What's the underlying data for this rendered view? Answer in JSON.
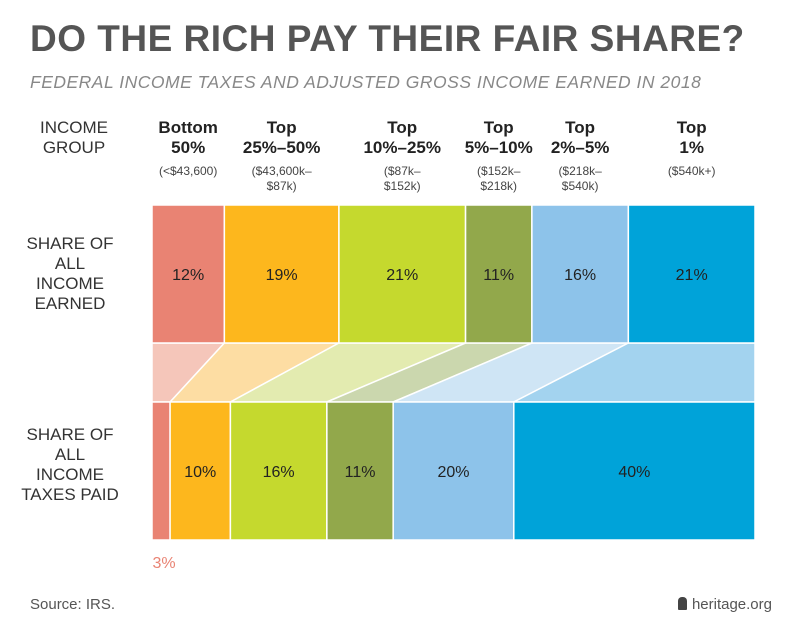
{
  "title": "DO THE RICH PAY THEIR FAIR SHARE?",
  "subtitle": "FEDERAL INCOME TAXES AND ADJUSTED GROSS INCOME EARNED IN 2018",
  "row_labels": {
    "group": "INCOME GROUP",
    "income": "SHARE OF ALL INCOME EARNED",
    "taxes": "SHARE OF ALL INCOME TAXES PAID"
  },
  "source": "Source: IRS.",
  "brand": "heritage.org",
  "brand_icon": "liberty-bell-icon",
  "chart_data": {
    "type": "bar",
    "stacked": "100% horizontal",
    "title": "DO THE RICH PAY THEIR FAIR SHARE?",
    "subtitle": "FEDERAL INCOME TAXES AND ADJUSTED GROSS INCOME EARNED IN 2018",
    "categories": [
      {
        "name": "Bottom 50%",
        "range": "(<$43,600)",
        "color": "#E98373",
        "light": "#F5C6BA"
      },
      {
        "name": "Top 25%–50%",
        "range": "($43,600k– $87k)",
        "color": "#FDB71D",
        "light": "#FDDDA3"
      },
      {
        "name": "Top 10%–25%",
        "range": "($87k– $152k)",
        "color": "#C5D92E",
        "light": "#E3EBB0"
      },
      {
        "name": "Top 5%–10%",
        "range": "($152k– $218k)",
        "color": "#92A84B",
        "light": "#CBD7AE"
      },
      {
        "name": "Top 2%–5%",
        "range": "($218k– $540k)",
        "color": "#8DC3EA",
        "light": "#CFE5F5"
      },
      {
        "name": "Top 1%",
        "range": "($540k+)",
        "color": "#00A3D9",
        "light": "#A3D3EF"
      }
    ],
    "series": [
      {
        "name": "SHARE OF ALL INCOME EARNED",
        "values": [
          12,
          19,
          21,
          11,
          16,
          21
        ],
        "labels": [
          "12%",
          "19%",
          "21%",
          "11%",
          "16%",
          "21%"
        ]
      },
      {
        "name": "SHARE OF ALL INCOME TAXES PAID",
        "values": [
          3,
          10,
          16,
          11,
          20,
          40
        ],
        "labels": [
          "3%",
          "10%",
          "16%",
          "11%",
          "20%",
          "40%"
        ]
      }
    ]
  }
}
